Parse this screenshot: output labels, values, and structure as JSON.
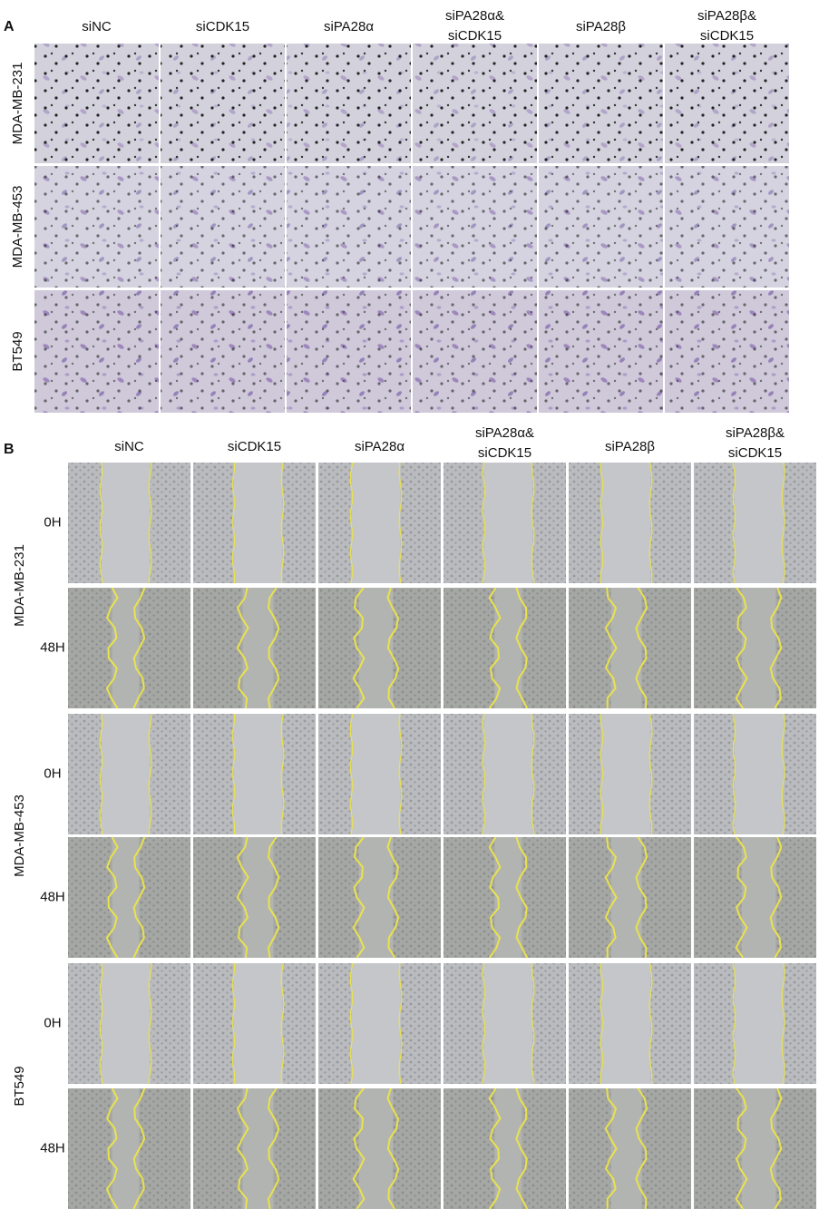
{
  "panel_a": {
    "label": "A",
    "columns": [
      [
        "siNC"
      ],
      [
        "siCDK15"
      ],
      [
        "siPA28α"
      ],
      [
        "siPA28α&",
        "siCDK15"
      ],
      [
        "siPA28β"
      ],
      [
        "siPA28β&",
        "siCDK15"
      ]
    ],
    "rows": [
      "MDA-MB-231",
      "MDA-MB-453",
      "BT549"
    ]
  },
  "panel_b": {
    "label": "B",
    "columns": [
      [
        "siNC"
      ],
      [
        "siCDK15"
      ],
      [
        "siPA28α"
      ],
      [
        "siPA28α&",
        "siCDK15"
      ],
      [
        "siPA28β"
      ],
      [
        "siPA28β&",
        "siCDK15"
      ]
    ],
    "cell_lines": [
      {
        "name": "MDA-MB-231",
        "timepoints": [
          "0H",
          "48H"
        ]
      },
      {
        "name": "MDA-MB-453",
        "timepoints": [
          "0H",
          "48H"
        ]
      },
      {
        "name": "BT549",
        "timepoints": [
          "0H",
          "48H"
        ]
      }
    ]
  }
}
